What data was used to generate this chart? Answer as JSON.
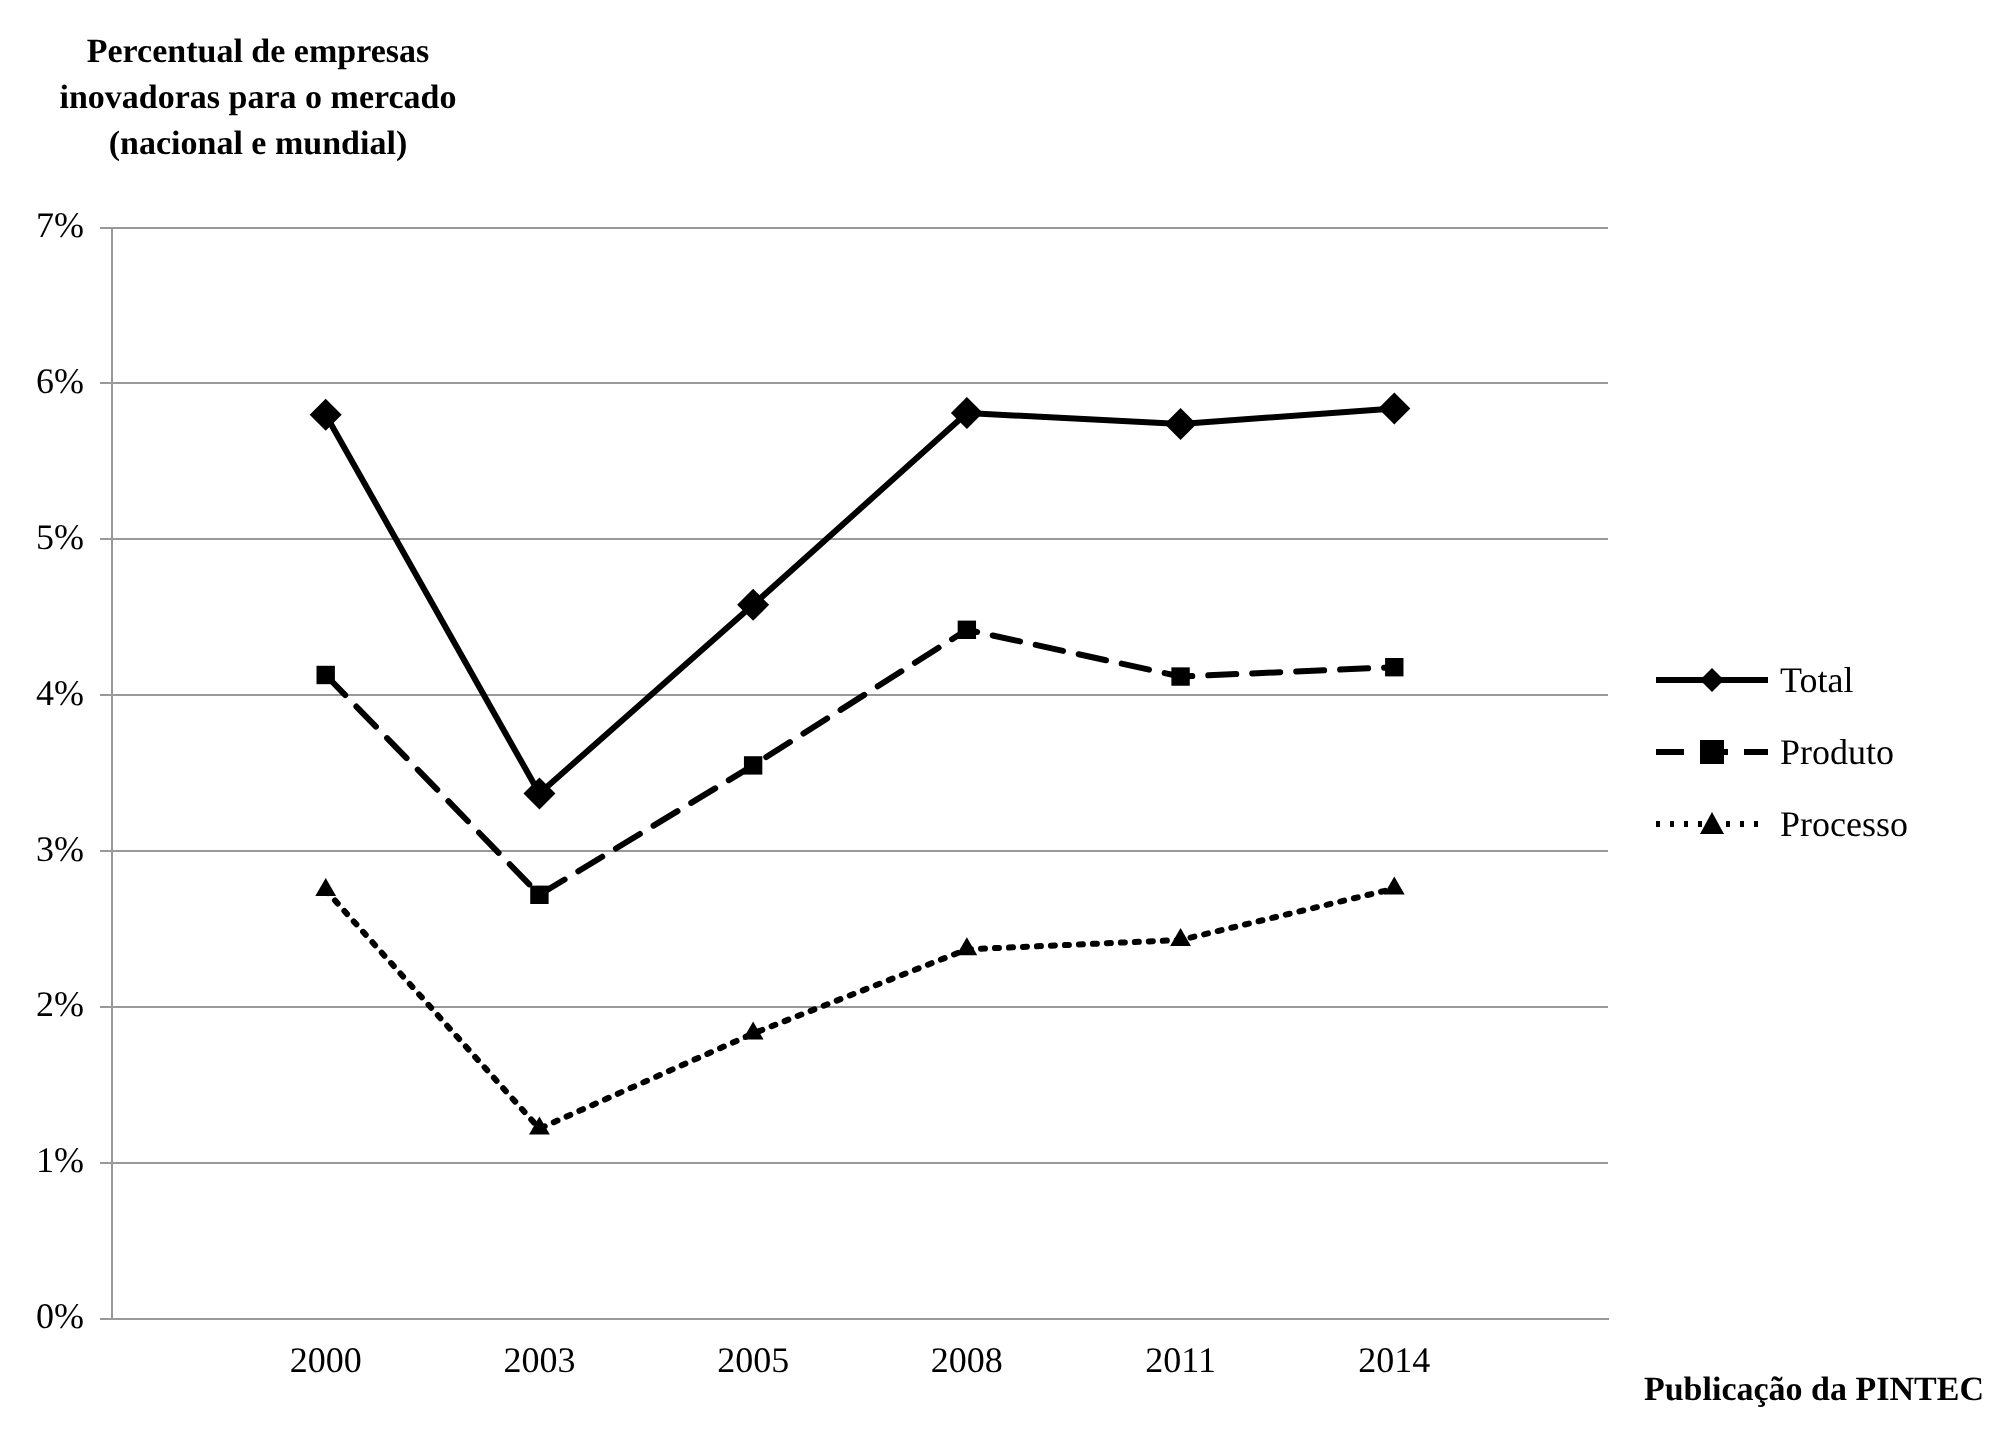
{
  "chart_data": {
    "type": "line",
    "ylabel": "Percentual de empresas inovadoras para o mercado (nacional e mundial)",
    "xlabel": "Publicação da PINTEC",
    "categories": [
      "2000",
      "2003",
      "2005",
      "2008",
      "2011",
      "2014"
    ],
    "series": [
      {
        "name": "Total",
        "color": "#000000",
        "marker": "diamond",
        "line_style": "solid",
        "values": [
          5.8,
          3.37,
          4.58,
          5.81,
          5.74,
          5.84
        ]
      },
      {
        "name": "Produto",
        "color": "#000000",
        "marker": "square",
        "line_style": "dashed",
        "values": [
          4.13,
          2.72,
          3.55,
          4.42,
          4.12,
          4.18
        ]
      },
      {
        "name": "Processo",
        "color": "#000000",
        "marker": "triangle",
        "line_style": "dotted",
        "values": [
          2.75,
          1.22,
          1.83,
          2.37,
          2.43,
          2.76
        ]
      }
    ],
    "ylim": [
      0,
      7
    ],
    "yticks": [
      {
        "value": 0,
        "label": "0%"
      },
      {
        "value": 1,
        "label": "1%"
      },
      {
        "value": 2,
        "label": "2%"
      },
      {
        "value": 3,
        "label": "3%"
      },
      {
        "value": 4,
        "label": "4%"
      },
      {
        "value": 5,
        "label": "5%"
      },
      {
        "value": 6,
        "label": "6%"
      },
      {
        "value": 7,
        "label": "7%"
      }
    ],
    "grid": "y",
    "legend": "right"
  }
}
